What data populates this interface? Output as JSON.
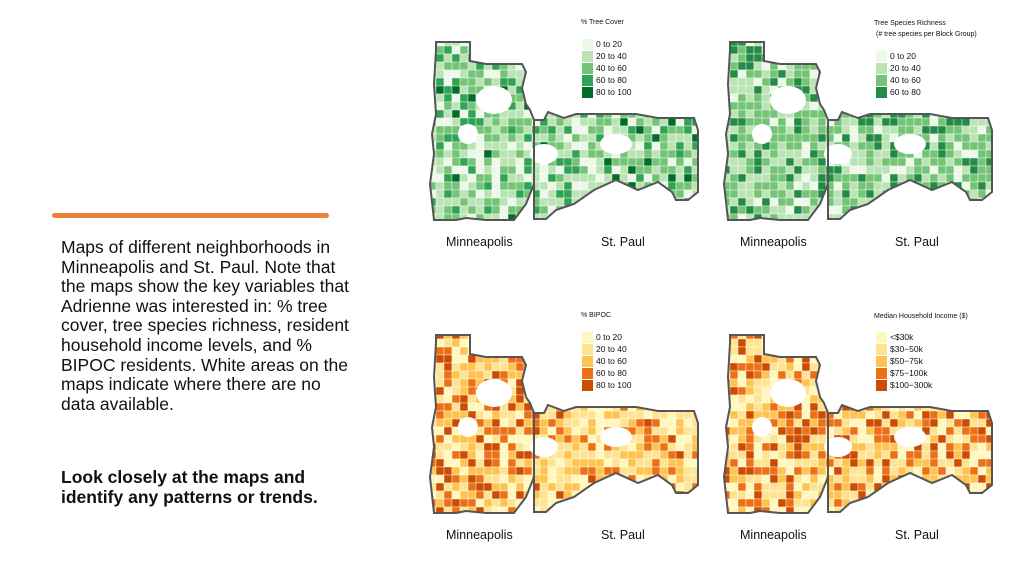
{
  "caption": "Maps of different neighborhoods in Minneapolis and St. Paul. Note that the maps show the key variables that Adrienne was interested in: % tree cover, tree species richness, resident household income levels, and % BIPOC residents. White areas on the maps indicate where there are no data available.",
  "prompt": "Look closely at the maps and identify any patterns or trends.",
  "colors": {
    "accent": "#E8823A",
    "outline": "#555555"
  },
  "maps": [
    {
      "legend_title": "% Tree Cover",
      "legend_subtitle": "",
      "legend": [
        {
          "label": "0 to 20",
          "color": "#EDF8E9"
        },
        {
          "label": "20 to 40",
          "color": "#BAE4B3"
        },
        {
          "label": "40 to 60",
          "color": "#74C476"
        },
        {
          "label": "60 to 80",
          "color": "#31A354"
        },
        {
          "label": "80 to 100",
          "color": "#006D2C"
        }
      ],
      "cities": [
        "Minneapolis",
        "St. Paul"
      ]
    },
    {
      "legend_title": "Tree Species Richness",
      "legend_subtitle": "(# tree species per Block Group)",
      "legend": [
        {
          "label": "0 to 20",
          "color": "#EDF8E9"
        },
        {
          "label": "20 to 40",
          "color": "#BAE4B3"
        },
        {
          "label": "40 to 60",
          "color": "#74C476"
        },
        {
          "label": "60 to 80",
          "color": "#238B45"
        }
      ],
      "cities": [
        "Minneapolis",
        "St. Paul"
      ]
    },
    {
      "legend_title": "% BIPOC",
      "legend_subtitle": "",
      "legend": [
        {
          "label": "0 to 20",
          "color": "#FFF7BC"
        },
        {
          "label": "20 to 40",
          "color": "#FEE391"
        },
        {
          "label": "40 to 60",
          "color": "#FEC44F"
        },
        {
          "label": "60 to 80",
          "color": "#EC7014"
        },
        {
          "label": "80 to 100",
          "color": "#CC4C02"
        }
      ],
      "cities": [
        "Minneapolis",
        "St. Paul"
      ]
    },
    {
      "legend_title": "Median Household Income ($)",
      "legend_subtitle": "",
      "legend": [
        {
          "label": "<$30k",
          "color": "#FFF7BC"
        },
        {
          "label": "$30−50k",
          "color": "#FEE391"
        },
        {
          "label": "$50−75k",
          "color": "#FEC44F"
        },
        {
          "label": "$75−100k",
          "color": "#EC7014"
        },
        {
          "label": "$100−300k",
          "color": "#CC4C02"
        }
      ],
      "cities": [
        "Minneapolis",
        "St. Paul"
      ]
    }
  ]
}
